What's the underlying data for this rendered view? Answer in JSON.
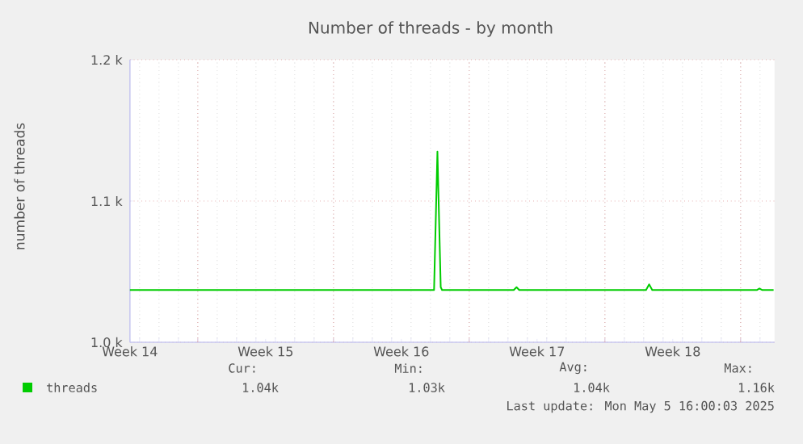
{
  "chart_data": {
    "type": "line",
    "title": "Number of threads - by month",
    "ylabel": "number of threads",
    "x": [
      "2025-04-02T10:00",
      "2025-04-18T02:30",
      "2025-04-18T06:40",
      "2025-04-18T10:45",
      "2025-04-18T12:25",
      "2025-04-22T05:10",
      "2025-04-22T08:35",
      "2025-04-22T11:55",
      "2025-04-29T00:55",
      "2025-04-29T04:45",
      "2025-04-29T08:35",
      "2025-05-04T18:25",
      "2025-05-04T21:15",
      "2025-05-05T00:25",
      "2025-05-05T14:50"
    ],
    "series": [
      {
        "name": "threads",
        "color": "#00cc00",
        "values": [
          1037,
          1037,
          1135,
          1039,
          1037,
          1037,
          1039,
          1037,
          1037,
          1041,
          1037,
          1037,
          1038,
          1037,
          1037
        ]
      }
    ],
    "xlim": [
      "2025-04-02T10:00",
      "2025-05-05T16:00"
    ],
    "xticks": [
      {
        "value": "2025-04-02T10:00",
        "label": "Week 14"
      },
      {
        "value": "2025-04-05T22:00",
        "label": null
      },
      {
        "value": "2025-04-09T10:00",
        "label": "Week 15"
      },
      {
        "value": "2025-04-12T22:00",
        "label": null
      },
      {
        "value": "2025-04-16T10:00",
        "label": "Week 16"
      },
      {
        "value": "2025-04-19T22:00",
        "label": null
      },
      {
        "value": "2025-04-23T10:00",
        "label": "Week 17"
      },
      {
        "value": "2025-04-26T22:00",
        "label": null
      },
      {
        "value": "2025-04-30T10:00",
        "label": "Week 18"
      },
      {
        "value": "2025-05-03T22:00",
        "label": null
      }
    ],
    "ylim": [
      1000,
      1200
    ],
    "yticks": [
      {
        "value": 1000,
        "label": "1.0 k"
      },
      {
        "value": 1100,
        "label": "1.1 k"
      },
      {
        "value": 1200,
        "label": "1.2 k"
      }
    ],
    "grid": true,
    "legend": "bottom",
    "annotations": [
      "Cur:",
      "Min:",
      "Avg:",
      "Max:",
      "1.04k",
      "1.03k",
      "1.04k",
      "1.16k",
      "Last update: Mon May  5 16:00:03 2025"
    ]
  }
}
